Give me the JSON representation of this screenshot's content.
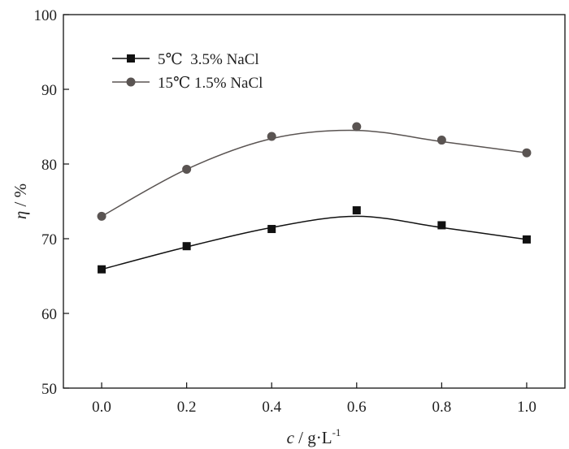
{
  "chart_data": {
    "type": "line",
    "title": "",
    "xlabel": "c / g·L-1",
    "xlabel_parts": {
      "var": "c",
      "unit": " / g·L",
      "sup": "-1"
    },
    "ylabel": "η / %",
    "ylabel_parts": {
      "var": "η",
      "unit": " / %"
    },
    "x": [
      0.0,
      0.2,
      0.4,
      0.6,
      0.8,
      1.0
    ],
    "xlim": [
      -0.09,
      1.09
    ],
    "ylim": [
      50,
      100
    ],
    "xticks": [
      "0.0",
      "0.2",
      "0.4",
      "0.6",
      "0.8",
      "1.0"
    ],
    "yticks": [
      "50",
      "60",
      "70",
      "80",
      "90",
      "100"
    ],
    "grid": false,
    "legend_position": "top-left",
    "series": [
      {
        "name": "5℃  3.5% NaCl",
        "marker": "square",
        "color": "#111111",
        "values": [
          65.9,
          69.0,
          71.3,
          73.8,
          71.8,
          69.9
        ],
        "fit": [
          65.9,
          68.9,
          71.5,
          73.0,
          71.5,
          69.9
        ]
      },
      {
        "name": "15℃ 1.5% NaCl",
        "marker": "circle",
        "color": "#5a5452",
        "values": [
          73.0,
          79.3,
          83.7,
          85.0,
          83.2,
          81.5
        ],
        "fit": [
          73.0,
          79.3,
          83.4,
          84.5,
          83.0,
          81.5
        ]
      }
    ]
  }
}
